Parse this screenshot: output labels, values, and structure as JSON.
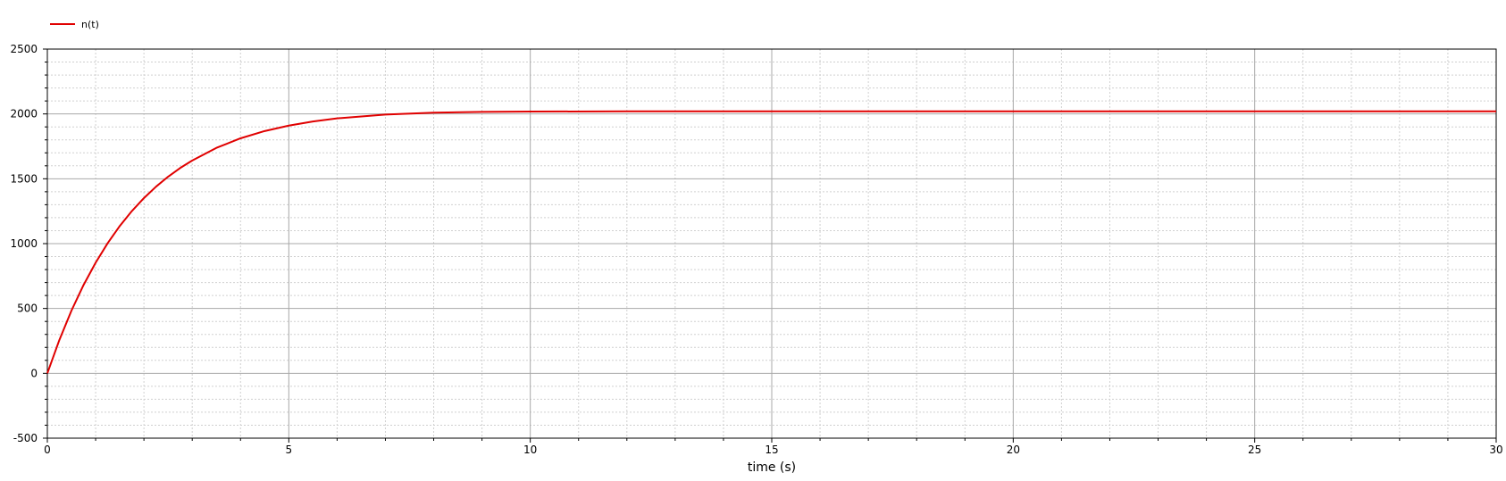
{
  "chart_data": {
    "type": "line",
    "title": "",
    "xlabel": "time (s)",
    "ylabel": "",
    "xlim": [
      0,
      30
    ],
    "ylim": [
      -500,
      2500
    ],
    "x_ticks": [
      "0",
      "5",
      "10",
      "15",
      "20",
      "25",
      "30"
    ],
    "y_ticks": [
      "-500",
      "0",
      "500",
      "1000",
      "1500",
      "2000",
      "2500"
    ],
    "grid": true,
    "legend": {
      "position": "top-left",
      "entries": [
        "n(t)"
      ]
    },
    "series": [
      {
        "name": "n(t)",
        "color": "#e00000",
        "x": [
          0,
          0.25,
          0.5,
          0.75,
          1,
          1.25,
          1.5,
          1.75,
          2,
          2.25,
          2.5,
          2.75,
          3,
          3.5,
          4,
          4.5,
          5,
          5.5,
          6,
          7,
          8,
          9,
          10,
          12,
          15,
          20,
          25,
          30
        ],
        "y": [
          0,
          258,
          484,
          681,
          853,
          1004,
          1136,
          1251,
          1351,
          1439,
          1516,
          1583,
          1641,
          1738,
          1812,
          1868,
          1910,
          1942,
          1966,
          1995,
          2010,
          2016,
          2018,
          2020,
          2020,
          2020,
          2020,
          2020
        ]
      }
    ]
  }
}
